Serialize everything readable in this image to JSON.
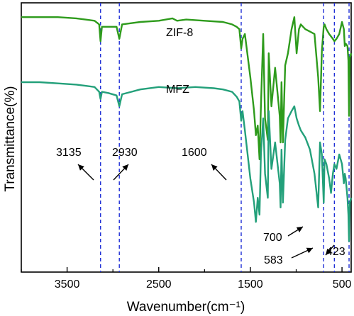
{
  "chart_data": {
    "type": "line",
    "title": "",
    "xlabel": "Wavenumber(cm⁻¹)",
    "ylabel": "Transmittance(%)",
    "xlim": [
      4000,
      400
    ],
    "x_reversed": true,
    "xticks": [
      3500,
      2500,
      1500,
      500
    ],
    "xtick_labels": [
      "3500",
      "2500",
      "1500",
      "500"
    ],
    "yticks_shown": false,
    "series": [
      {
        "name": "ZIF-8",
        "color": "#2e9b1c",
        "x": [
          4000,
          3800,
          3600,
          3400,
          3300,
          3200,
          3150,
          3135,
          3120,
          3050,
          2960,
          2930,
          2900,
          2800,
          2700,
          2500,
          2350,
          2300,
          2200,
          2000,
          1800,
          1700,
          1650,
          1620,
          1600,
          1585,
          1560,
          1500,
          1460,
          1440,
          1420,
          1400,
          1385,
          1360,
          1340,
          1310,
          1300,
          1270,
          1230,
          1180,
          1170,
          1160,
          1145,
          1120,
          1090,
          1050,
          1020,
          995,
          970,
          950,
          900,
          850,
          800,
          760,
          740,
          720,
          700,
          690,
          670,
          640,
          620,
          600,
          583,
          560,
          530,
          500,
          480,
          470,
          460,
          440,
          430,
          423,
          415,
          400
        ],
        "y": [
          97,
          97,
          97,
          96.5,
          96,
          95.5,
          94,
          87,
          93,
          93,
          93,
          88,
          94,
          94.5,
          95,
          95.5,
          96.5,
          95.5,
          96,
          95.5,
          95,
          94,
          93,
          92,
          84,
          88,
          90,
          72,
          58,
          48,
          52,
          38,
          60,
          90,
          55,
          46,
          82,
          60,
          76,
          56,
          45,
          70,
          45,
          77,
          82,
          92,
          97,
          82,
          92,
          94,
          92,
          91,
          90,
          72,
          58,
          83,
          93,
          94,
          92,
          90,
          89,
          88,
          87,
          88,
          90,
          95,
          92,
          85,
          86,
          85,
          79,
          56,
          80,
          82
        ]
      },
      {
        "name": "MFZ",
        "color": "#23a07a",
        "x": [
          4000,
          3800,
          3600,
          3400,
          3300,
          3200,
          3150,
          3135,
          3120,
          3050,
          2960,
          2930,
          2900,
          2800,
          2700,
          2500,
          2300,
          2100,
          1900,
          1800,
          1700,
          1650,
          1620,
          1600,
          1585,
          1560,
          1500,
          1460,
          1440,
          1420,
          1400,
          1385,
          1360,
          1340,
          1310,
          1300,
          1270,
          1230,
          1180,
          1170,
          1160,
          1145,
          1120,
          1090,
          1050,
          1020,
          995,
          970,
          950,
          900,
          850,
          800,
          760,
          740,
          720,
          700,
          690,
          670,
          640,
          620,
          600,
          583,
          560,
          530,
          500,
          480,
          470,
          460,
          440,
          430,
          423,
          415,
          400
        ],
        "y": [
          70,
          70,
          69.5,
          69,
          68.5,
          68,
          66,
          63,
          66,
          65.5,
          64.5,
          60,
          65,
          66,
          67,
          68,
          67.5,
          68,
          67.5,
          67,
          66,
          64,
          62,
          54,
          58,
          50,
          30,
          20,
          12,
          22,
          15,
          40,
          55,
          32,
          22,
          58,
          34,
          45,
          28,
          18,
          42,
          20,
          46,
          55,
          58,
          60,
          55,
          52,
          50,
          47,
          42,
          32,
          18,
          45,
          40,
          20,
          38,
          36,
          30,
          24,
          32,
          36,
          34,
          40,
          36,
          28,
          32,
          30,
          22,
          15,
          4,
          20,
          22
        ]
      }
    ],
    "reference_lines": {
      "style": "dashed",
      "color": "#1f2fd6",
      "x": [
        3135,
        2930,
        1600,
        700,
        583,
        423
      ]
    },
    "annotations": [
      {
        "text": "3135",
        "x": 3135
      },
      {
        "text": "2930",
        "x": 2930
      },
      {
        "text": "1600",
        "x": 1600
      },
      {
        "text": "700",
        "x": 700
      },
      {
        "text": "583",
        "x": 583
      },
      {
        "text": "423",
        "x": 423
      }
    ],
    "series_labels": [
      {
        "text": "ZIF-8"
      },
      {
        "text": "MFZ"
      }
    ]
  }
}
